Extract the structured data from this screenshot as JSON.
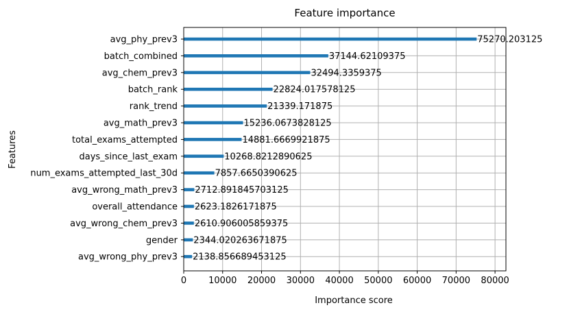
{
  "chart_data": {
    "type": "bar",
    "orientation": "horizontal",
    "title": "Feature importance",
    "xlabel": "Importance score",
    "ylabel": "Features",
    "xlim": [
      0,
      82800
    ],
    "xticks": [
      0,
      10000,
      20000,
      30000,
      40000,
      50000,
      60000,
      70000,
      80000
    ],
    "xtick_labels": [
      "0",
      "10000",
      "20000",
      "30000",
      "40000",
      "50000",
      "60000",
      "70000",
      "80000"
    ],
    "grid": true,
    "bar_color": "#1f77b4",
    "categories": [
      "avg_phy_prev3",
      "batch_combined",
      "avg_chem_prev3",
      "batch_rank",
      "rank_trend",
      "avg_math_prev3",
      "total_exams_attempted",
      "days_since_last_exam",
      "num_exams_attempted_last_30d",
      "avg_wrong_math_prev3",
      "overall_attendance",
      "avg_wrong_chem_prev3",
      "gender",
      "avg_wrong_phy_prev3"
    ],
    "values": [
      75270.203125,
      37144.62109375,
      32494.3359375,
      22824.017578125,
      21339.171875,
      15236.0673828125,
      14881.6669921875,
      10268.8212890625,
      7857.6650390625,
      2712.891845703125,
      2623.1826171875,
      2610.906005859375,
      2344.020263671875,
      2138.856689453125
    ],
    "value_labels": [
      "75270.203125",
      "37144.62109375",
      "32494.3359375",
      "22824.017578125",
      "21339.171875",
      "15236.0673828125",
      "14881.6669921875",
      "10268.8212890625",
      "7857.6650390625",
      "2712.891845703125",
      "2623.1826171875",
      "2610.906005859375",
      "2344.020263671875",
      "2138.856689453125"
    ]
  }
}
